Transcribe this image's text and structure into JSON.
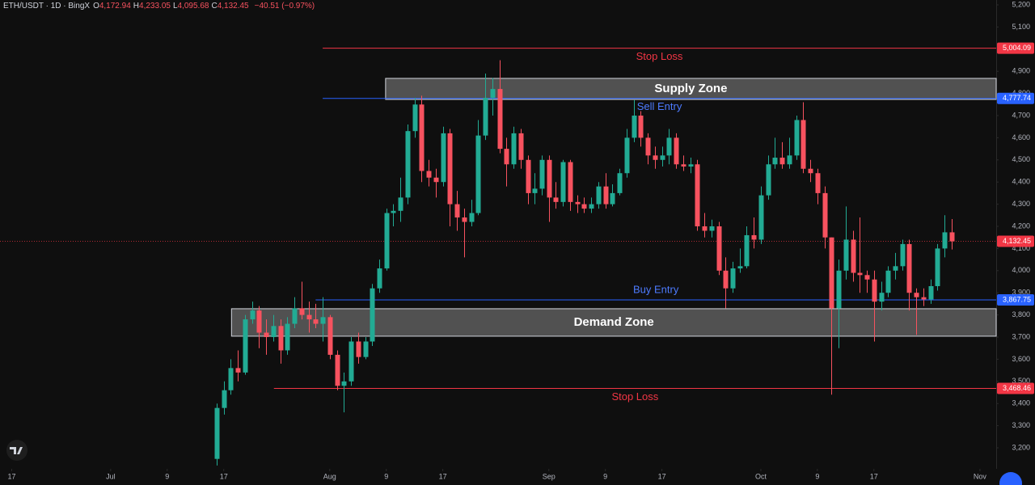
{
  "chart_data": {
    "type": "candlestick",
    "header": {
      "symbol": "ETH/USDT · 1D · BingX",
      "ohlc": [
        {
          "key": "O",
          "value": "4,172.94"
        },
        {
          "key": "H",
          "value": "4,233.05"
        },
        {
          "key": "L",
          "value": "4,095.68"
        },
        {
          "key": "C",
          "value": "4,132.45"
        }
      ],
      "change": "−40.51 (−0.97%)"
    },
    "up_color": "#22ab94",
    "down_color": "#f7525f",
    "open": [
      3150,
      3380,
      3460,
      3560,
      3540,
      3780,
      3820,
      3720,
      3700,
      3750,
      3640,
      3760,
      3830,
      3800,
      3780,
      3760,
      3790,
      3620,
      3480,
      3500,
      3680,
      3610,
      3680,
      3920,
      4010,
      4260,
      4270,
      4330,
      4630,
      4750,
      4450,
      4420,
      4400,
      4620,
      4300,
      4240,
      4220,
      4260,
      4610,
      4780,
      4820,
      4550,
      4480,
      4620,
      4500,
      4350,
      4370,
      4500,
      4330,
      4310,
      4490,
      4310,
      4300,
      4280,
      4300,
      4380,
      4300,
      4350,
      4440,
      4600,
      4700,
      4600,
      4520,
      4500,
      4520,
      4600,
      4480,
      4470,
      4480,
      4200,
      4180,
      4200,
      4000,
      3920,
      4010,
      4020,
      4160,
      4140,
      4340,
      4480,
      4510,
      4480,
      4520,
      4680,
      4460,
      4440,
      4350,
      4150,
      3830,
      4000,
      4140,
      3990,
      3980,
      3960,
      3860,
      3900,
      4000,
      4020,
      4120,
      3900,
      3880,
      3870,
      3930,
      4100,
      4172.94
    ],
    "high": [
      3400,
      3500,
      3600,
      3640,
      3800,
      3860,
      3840,
      3780,
      3800,
      3780,
      3790,
      3880,
      3950,
      3860,
      3850,
      3880,
      3800,
      3640,
      3540,
      3700,
      3720,
      3700,
      3940,
      4050,
      4280,
      4300,
      4420,
      4660,
      4780,
      4790,
      4500,
      4460,
      4650,
      4640,
      4360,
      4280,
      4320,
      4680,
      4890,
      4870,
      4950,
      4600,
      4650,
      4640,
      4520,
      4440,
      4520,
      4520,
      4400,
      4500,
      4500,
      4340,
      4330,
      4330,
      4400,
      4440,
      4390,
      4460,
      4640,
      4770,
      4720,
      4620,
      4560,
      4560,
      4640,
      4620,
      4520,
      4510,
      4500,
      4260,
      4230,
      4220,
      4060,
      4040,
      4100,
      4200,
      4240,
      4380,
      4520,
      4600,
      4580,
      4600,
      4700,
      4760,
      4500,
      4460,
      4380,
      4150,
      4050,
      4290,
      4180,
      4240,
      4000,
      4000,
      3950,
      4020,
      4080,
      4140,
      4140,
      3920,
      3920,
      3960,
      4120,
      4250,
      4233.05
    ],
    "low": [
      3120,
      3350,
      3440,
      3500,
      3530,
      3760,
      3650,
      3620,
      3680,
      3580,
      3620,
      3740,
      3780,
      3720,
      3740,
      3680,
      3600,
      3460,
      3360,
      3480,
      3580,
      3600,
      3660,
      3900,
      4000,
      4200,
      4220,
      4300,
      4600,
      4400,
      4380,
      4330,
      4380,
      4200,
      4180,
      4060,
      4200,
      4250,
      4590,
      4700,
      4530,
      4380,
      4460,
      4460,
      4300,
      4300,
      4340,
      4220,
      4280,
      4290,
      4270,
      4260,
      4260,
      4260,
      4280,
      4280,
      4290,
      4340,
      4420,
      4580,
      4560,
      4480,
      4460,
      4470,
      4480,
      4460,
      4450,
      4440,
      4180,
      4150,
      4150,
      3980,
      3830,
      3900,
      3990,
      4010,
      4100,
      4120,
      4320,
      4460,
      4460,
      4460,
      4500,
      4440,
      4400,
      4300,
      4100,
      3440,
      3650,
      3960,
      3950,
      3900,
      3900,
      3680,
      3820,
      3880,
      3960,
      4000,
      3820,
      3710,
      3840,
      3850,
      3910,
      4060,
      4095.68
    ],
    "close": [
      3380,
      3460,
      3560,
      3540,
      3780,
      3820,
      3720,
      3700,
      3750,
      3640,
      3760,
      3830,
      3800,
      3780,
      3760,
      3790,
      3620,
      3480,
      3500,
      3680,
      3610,
      3680,
      3920,
      4010,
      4260,
      4270,
      4330,
      4630,
      4750,
      4450,
      4420,
      4400,
      4620,
      4300,
      4240,
      4220,
      4260,
      4610,
      4780,
      4820,
      4550,
      4480,
      4620,
      4500,
      4350,
      4370,
      4500,
      4330,
      4310,
      4490,
      4310,
      4300,
      4280,
      4300,
      4380,
      4300,
      4350,
      4440,
      4600,
      4700,
      4600,
      4520,
      4500,
      4520,
      4600,
      4480,
      4470,
      4480,
      4200,
      4180,
      4200,
      4000,
      3920,
      4010,
      4020,
      4160,
      4140,
      4340,
      4480,
      4510,
      4480,
      4520,
      4680,
      4460,
      4440,
      4350,
      4150,
      3830,
      4000,
      4140,
      3990,
      3980,
      3960,
      3860,
      3900,
      4000,
      4020,
      4120,
      3900,
      3880,
      3870,
      3930,
      4100,
      4172.94,
      4132.45
    ],
    "xlim": [
      -30.66,
      110.3
    ],
    "xticks": [
      {
        "value": -29,
        "label": "17"
      },
      {
        "value": -15,
        "label": "Jul"
      },
      {
        "value": -7,
        "label": "9"
      },
      {
        "value": 1,
        "label": "17"
      },
      {
        "value": 16,
        "label": "Aug"
      },
      {
        "value": 24,
        "label": "9"
      },
      {
        "value": 32,
        "label": "17"
      },
      {
        "value": 47,
        "label": "Sep"
      },
      {
        "value": 55,
        "label": "9"
      },
      {
        "value": 63,
        "label": "17"
      },
      {
        "value": 77,
        "label": "Oct"
      },
      {
        "value": 85,
        "label": "9"
      },
      {
        "value": 93,
        "label": "17"
      },
      {
        "value": 108,
        "label": "Nov"
      }
    ],
    "ylim": [
      3105.1,
      5221.9
    ],
    "yticks": [
      {
        "value": 3200,
        "label": "3,200"
      },
      {
        "value": 3300,
        "label": "3,300"
      },
      {
        "value": 3400,
        "label": "3,400"
      },
      {
        "value": 3500,
        "label": "3,500"
      },
      {
        "value": 3600,
        "label": "3,600"
      },
      {
        "value": 3700,
        "label": "3,700"
      },
      {
        "value": 3800,
        "label": "3,800"
      },
      {
        "value": 3900,
        "label": "3,900"
      },
      {
        "value": 4000,
        "label": "4,000"
      },
      {
        "value": 4100,
        "label": "4,100"
      },
      {
        "value": 4200,
        "label": "4,200"
      },
      {
        "value": 4300,
        "label": "4,300"
      },
      {
        "value": 4400,
        "label": "4,400"
      },
      {
        "value": 4500,
        "label": "4,500"
      },
      {
        "value": 4600,
        "label": "4,600"
      },
      {
        "value": 4700,
        "label": "4,700"
      },
      {
        "value": 4800,
        "label": "4,800"
      },
      {
        "value": 4900,
        "label": "4,900"
      },
      {
        "value": 5000,
        "label": "5,000"
      },
      {
        "value": 5100,
        "label": "5,100"
      },
      {
        "value": 5200,
        "label": "5,200"
      }
    ],
    "grid": false,
    "zones": [
      {
        "label": "Supply Zone",
        "low": 4773,
        "high": 4868,
        "from": 23.9
      },
      {
        "label": "Demand Zone",
        "low": 3704,
        "high": 3828,
        "from": 2.1
      }
    ],
    "levels": [
      {
        "label": "Stop Loss",
        "price": {
          "value": 5004.09,
          "label": "5,004.09"
        },
        "color": "#f23645",
        "from": 15,
        "label_position": "below"
      },
      {
        "label": "Sell Entry",
        "price": {
          "value": 4777.74,
          "label": "4,777.74"
        },
        "color": "#2962ff",
        "from": 15,
        "label_position": "below"
      },
      {
        "price": {
          "value": 4132.45,
          "label": "4,132.45"
        },
        "color": "#f23645",
        "from": -30.66
      },
      {
        "label": "Buy Entry",
        "price": {
          "value": 3867.75,
          "label": "3,867.75"
        },
        "color": "#2962ff",
        "from": 14,
        "label_position": "above"
      },
      {
        "label": "Stop Loss",
        "price": {
          "value": 3468.46,
          "label": "3,468.46"
        },
        "color": "#f23645",
        "from": 8.1,
        "label_position": "below"
      }
    ]
  }
}
